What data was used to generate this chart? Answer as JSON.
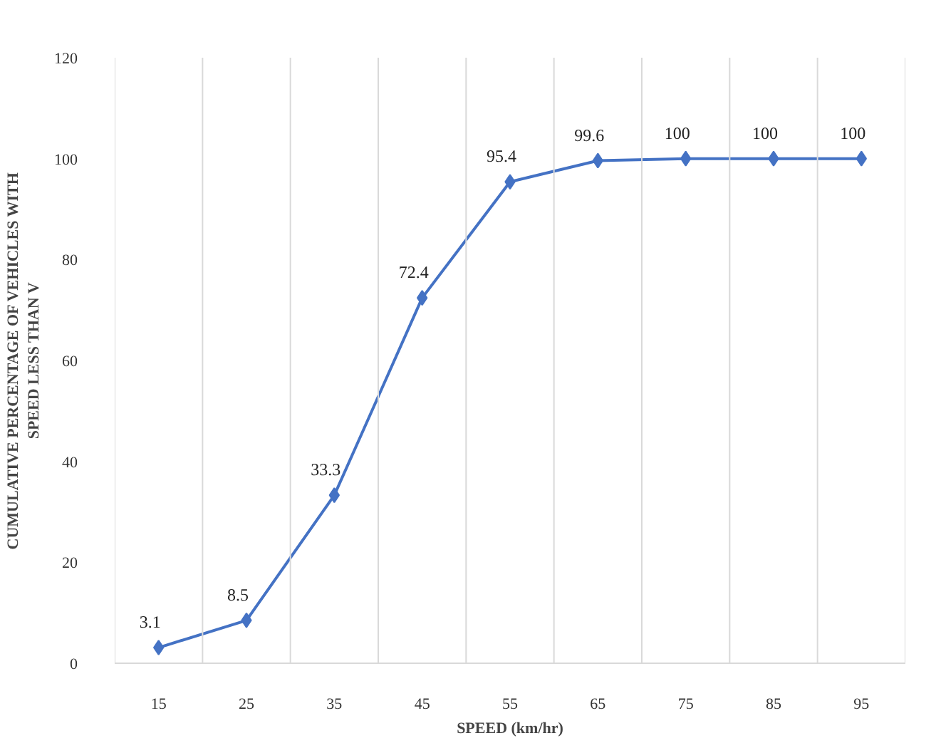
{
  "chart_data": {
    "type": "line",
    "xlabel": "SPEED (km/hr)",
    "ylabel": "CUMULATIVE PERCENTAGE OF VEHICLES WITH\nSPEED LESS THAN V",
    "categories": [
      "15",
      "25",
      "35",
      "45",
      "55",
      "65",
      "75",
      "85",
      "95"
    ],
    "series": [
      {
        "color": "#4472c4",
        "values": [
          3.1,
          8.5,
          33.3,
          72.4,
          95.4,
          99.6,
          100,
          100,
          100
        ]
      }
    ],
    "ylim": [
      0,
      120
    ],
    "yticks": [
      0,
      20,
      40,
      60,
      80,
      100,
      120
    ],
    "grid": "x",
    "marker": "diamond",
    "line_style": "solid",
    "data_labels": true
  }
}
